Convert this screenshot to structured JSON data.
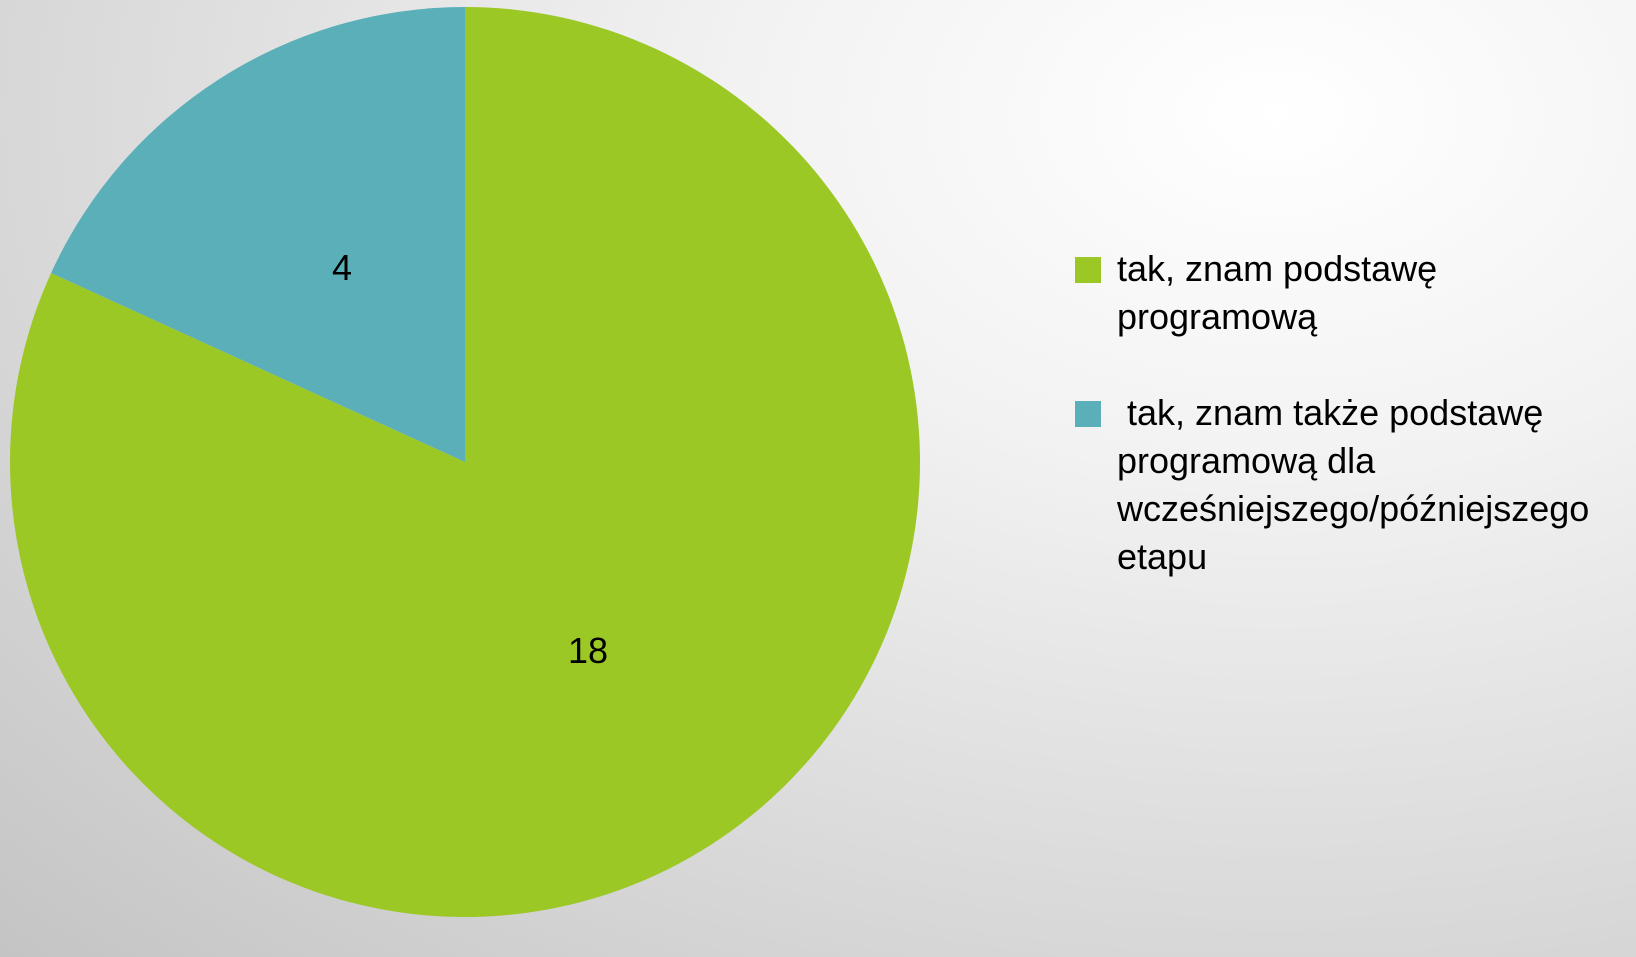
{
  "chart_data": {
    "type": "pie",
    "categories": [
      "tak, znam podstawę programową",
      " tak, znam także podstawę programową dla wcześniejszego/późniejszego etapu"
    ],
    "values": [
      18,
      4
    ],
    "colors": [
      "#9bc825",
      "#5aafb9"
    ],
    "legend": "right"
  }
}
